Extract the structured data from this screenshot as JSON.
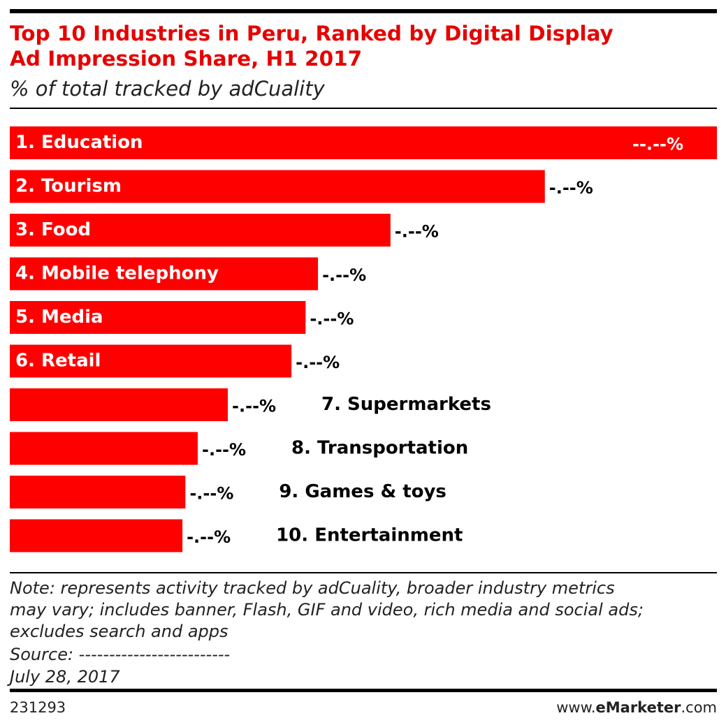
{
  "chart_data": {
    "type": "bar",
    "orientation": "horizontal",
    "title": [
      "Top 10 Industries in Peru, Ranked by Digital Display",
      "Ad Impression Share, H1 2017"
    ],
    "subtitle": "% of total tracked by adCuality",
    "categories": [
      "1. Education",
      "2. Tourism",
      "3. Food",
      "4. Mobile telephony",
      "5. Media",
      "6. Retail",
      "7. Supermarkets",
      "8. Transportation",
      "9. Games & toys",
      "10. Entertainment"
    ],
    "values": [
      12.0,
      9.08,
      6.46,
      5.23,
      5.02,
      4.78,
      3.7,
      3.19,
      2.98,
      2.93
    ],
    "value_labels": [
      "--.--%",
      "-.--%",
      "-.--%",
      "-.--%",
      "-.--%",
      "-.--%",
      "-.--%",
      "-.--%",
      "-.--%",
      "-.--%"
    ],
    "color": "#ff0000",
    "xlim": [
      0,
      12
    ],
    "note": [
      "Note: represents activity tracked by adCuality, broader industry metrics",
      "may vary; includes banner, Flash, GIF and video, rich media and social ads;",
      "excludes search and apps"
    ],
    "source": "Source: -------------------------",
    "date": "July 28, 2017",
    "chart_id": "231293",
    "site": [
      "www.",
      "eMarketer",
      ".com"
    ]
  }
}
